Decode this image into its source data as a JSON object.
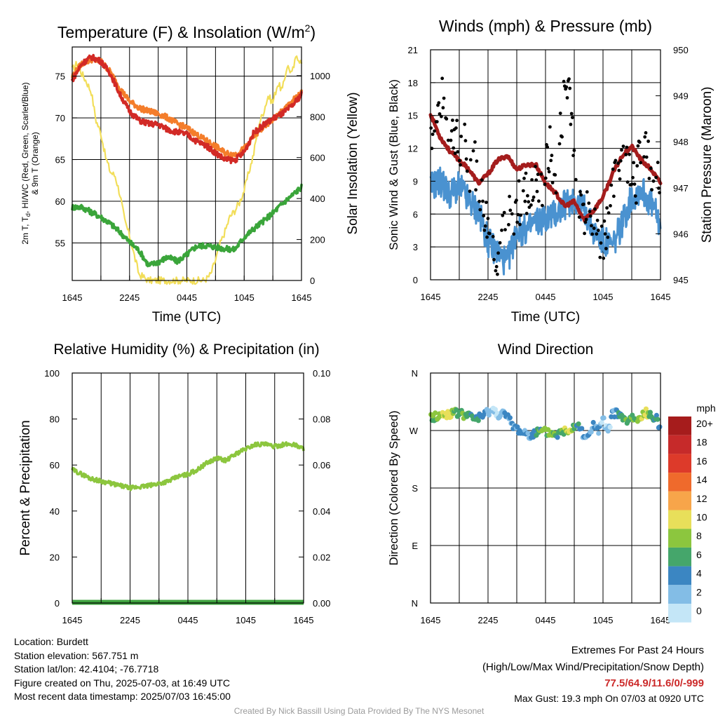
{
  "figure": {
    "credit": "Created By Nick Bassill Using Data Provided By The NYS Mesonet"
  },
  "info": {
    "location": "Location: Burdett",
    "elevation": "Station elevation: 567.751 m",
    "latlon": "Station lat/lon: 42.4104; -76.7718",
    "created": "Figure created on Thu, 2025-07-03, at 16:49 UTC",
    "recent": "Most recent data timestamp: 2025/07/03 16:45:00"
  },
  "extremes": {
    "title": "Extremes For Past 24 Hours",
    "subtitle": "(High/Low/Max Wind/Precipitation/Snow Depth)",
    "values": "77.5/64.9/11.6/0/-999",
    "max_gust": "Max Gust: 19.3 mph On 07/03 at 0920 UTC"
  },
  "colors": {
    "temp": "#d22a26",
    "dewpoint": "#3aa53a",
    "windchill": "#f47d2a",
    "solar": "#f2de5a",
    "wind": "#4a92d0",
    "gust": "#000000",
    "pressure": "#a41d1d",
    "rh": "#8cc63e",
    "precip": "#3fa33f"
  },
  "chart_data": [
    {
      "type": "line",
      "title": "Temperature (F) & Insolation (W/m",
      "title_sup": "2",
      "title_close": ")",
      "xlabel": "Time (UTC)",
      "ylabel_left_1": "2m T, T",
      "ylabel_left_sub": "d",
      "ylabel_left_2": ", HI/WC (Red, Green, Scarlet/Blue)",
      "ylabel_left_line2": "& 9m T (Orange)",
      "ylabel_right": "Solar Insolation (Yellow)",
      "x_ticks": [
        "1645",
        "2245",
        "0445",
        "1045",
        "1645"
      ],
      "x_range_hours": [
        0,
        24
      ],
      "ylim_left": [
        50.5,
        78.5
      ],
      "yticks_left": [
        55,
        60,
        65,
        70,
        75
      ],
      "ylim_right": [
        0,
        1140
      ],
      "yticks_right": [
        0,
        200,
        400,
        600,
        800,
        1000
      ],
      "series": [
        {
          "key": "t9m",
          "color": "orange",
          "x": [
            0,
            1,
            2,
            3,
            4,
            5,
            6,
            7,
            8,
            9,
            10,
            11,
            12,
            13,
            14,
            15,
            16,
            17,
            18,
            19,
            20,
            21,
            22,
            23,
            24
          ],
          "values": [
            75,
            76.5,
            77,
            76.8,
            75.5,
            73.5,
            72,
            71.2,
            70.8,
            70.5,
            70,
            69.3,
            68.8,
            68,
            67.3,
            66.6,
            65.8,
            65.6,
            66.3,
            67.8,
            68.8,
            69.8,
            70.8,
            72,
            73
          ]
        },
        {
          "key": "t2m",
          "color": "red",
          "x": [
            0,
            1,
            2,
            3,
            4,
            5,
            6,
            7,
            8,
            9,
            10,
            11,
            12,
            13,
            14,
            15,
            16,
            17,
            18,
            19,
            20,
            21,
            22,
            23,
            24
          ],
          "values": [
            74.5,
            76.5,
            77.3,
            76.8,
            75.3,
            72.8,
            70.8,
            69.7,
            69.3,
            69.2,
            68.6,
            68.3,
            68,
            67.2,
            66.7,
            65.8,
            65,
            64.9,
            65.9,
            68.2,
            69.1,
            69.9,
            70.5,
            71.4,
            72.8
          ]
        },
        {
          "key": "td",
          "color": "green",
          "x": [
            0,
            1,
            2,
            3,
            4,
            5,
            6,
            7,
            8,
            9,
            10,
            11,
            12,
            13,
            14,
            15,
            16,
            17,
            18,
            19,
            20,
            21,
            22,
            23,
            24
          ],
          "values": [
            59.3,
            59.3,
            58.7,
            58.1,
            57.3,
            56.3,
            55.1,
            54.1,
            52.3,
            52.7,
            53.3,
            52.8,
            53.6,
            54.6,
            54.7,
            54.5,
            54.3,
            54.2,
            55.7,
            56.7,
            57.6,
            58.6,
            59.7,
            60.7,
            61.7
          ]
        },
        {
          "key": "solar",
          "color": "yellow",
          "x": [
            0,
            0.5,
            1,
            1.5,
            2,
            2.5,
            3,
            3.5,
            4,
            4.5,
            5,
            5.5,
            6,
            6.5,
            7,
            8,
            10,
            12,
            13,
            13.7,
            14.1,
            14.5,
            15,
            15.5,
            16,
            16.5,
            17,
            17.5,
            18,
            18.5,
            19,
            19.5,
            20,
            20.5,
            21,
            21.5,
            22,
            22.5,
            23,
            23.5,
            24
          ],
          "values": [
            1030,
            1060,
            1010,
            970,
            920,
            780,
            720,
            600,
            530,
            510,
            420,
            290,
            220,
            120,
            30,
            0,
            0,
            0,
            0,
            0,
            10,
            30,
            100,
            180,
            240,
            310,
            340,
            380,
            440,
            530,
            620,
            760,
            820,
            900,
            870,
            960,
            930,
            1050,
            1010,
            1100,
            1060
          ]
        }
      ]
    },
    {
      "type": "line",
      "title": "Winds (mph) & Pressure (mb)",
      "xlabel": "Time (UTC)",
      "ylabel_left": "Sonic Wind & Gust (Blue, Black)",
      "ylabel_right": "Station Pressure (Maroon)",
      "x_ticks": [
        "1645",
        "2245",
        "0445",
        "1045",
        "1645"
      ],
      "ylim_left": [
        0,
        21
      ],
      "yticks_left": [
        0,
        3,
        6,
        9,
        12,
        15,
        18,
        21
      ],
      "ylim_right": [
        945,
        950
      ],
      "yticks_right": [
        945,
        946,
        947,
        948,
        949,
        950
      ],
      "series": [
        {
          "key": "wind",
          "color": "blue",
          "x": [
            0,
            1,
            2,
            3,
            4,
            5,
            6,
            7,
            8,
            9,
            10,
            11,
            12,
            13,
            14,
            15,
            16,
            17,
            18,
            19,
            20,
            21,
            22,
            23,
            24
          ],
          "values": [
            8.5,
            9,
            7.8,
            8.5,
            7.2,
            6.2,
            3.5,
            2.5,
            1.5,
            4.5,
            4.5,
            5.3,
            5.6,
            6,
            6.8,
            7.5,
            6.5,
            4.5,
            3.5,
            3,
            5.2,
            7.5,
            8.3,
            7,
            5
          ]
        },
        {
          "key": "gust",
          "color": "black",
          "x": [
            0,
            0.5,
            1,
            1.5,
            2,
            2.5,
            3,
            3.5,
            4,
            4.5,
            5,
            5.5,
            6,
            6.5,
            7,
            7.5,
            8,
            8.5,
            9,
            9.5,
            10,
            10.5,
            11,
            11.5,
            12,
            12.5,
            13,
            13.5,
            14,
            14.5,
            15,
            15.5,
            16,
            16.5,
            17,
            17.5,
            18,
            18.5,
            19,
            19.5,
            20,
            20.5,
            21,
            21.5,
            22,
            22.5,
            23,
            23.5
          ],
          "values": [
            14,
            13,
            17,
            15.5,
            12.5,
            14,
            11,
            13.5,
            10,
            11.5,
            9,
            7,
            5,
            3,
            2.5,
            4,
            5,
            6,
            6.5,
            7.5,
            8,
            7,
            9,
            8,
            10,
            12,
            9,
            13,
            17.5,
            18,
            12,
            8,
            6,
            9,
            5,
            4,
            3.5,
            6,
            8,
            10,
            12,
            10.5,
            11,
            9,
            13,
            12,
            9,
            8.5
          ]
        },
        {
          "key": "pressure",
          "color": "maroon",
          "axis": "right",
          "x": [
            0,
            1,
            2,
            3,
            4,
            5,
            6,
            7,
            8,
            9,
            10,
            11,
            12,
            13,
            14,
            15,
            16,
            17,
            18,
            19,
            20,
            21,
            22,
            23,
            24
          ],
          "values": [
            948.6,
            948.1,
            947.8,
            947.6,
            947.4,
            947.1,
            947.3,
            947.6,
            947.7,
            947.4,
            947.5,
            947.5,
            947.1,
            946.9,
            946.6,
            946.7,
            946.3,
            946.5,
            946.8,
            947.3,
            947.7,
            947.9,
            947.6,
            947.4,
            947.1
          ]
        }
      ]
    },
    {
      "type": "line",
      "title": "Relative Humidity (%) & Precipitation (in)",
      "ylabel_left": "Percent & Precipitation",
      "x_ticks": [
        "1645",
        "2245",
        "0445",
        "1045",
        "1645"
      ],
      "ylim_left": [
        0,
        100
      ],
      "yticks_left": [
        0,
        20,
        40,
        60,
        80,
        100
      ],
      "ylim_right": [
        0,
        0.1
      ],
      "yticks_right": [
        "0.00",
        "0.02",
        "0.04",
        "0.06",
        "0.08",
        "0.10"
      ],
      "series": [
        {
          "key": "rh",
          "color": "light-green",
          "x": [
            0,
            1,
            2,
            3,
            4,
            5,
            6,
            7,
            8,
            9,
            10,
            11,
            12,
            13,
            14,
            15,
            16,
            17,
            18,
            19,
            20,
            21,
            22,
            23,
            24
          ],
          "values": [
            58,
            56,
            54,
            53,
            52,
            51,
            50,
            50.5,
            51,
            52,
            53,
            55,
            56,
            58,
            61,
            63,
            62,
            65,
            67,
            69,
            69,
            68,
            69,
            69,
            67
          ]
        },
        {
          "key": "precip",
          "color": "green",
          "axis": "right",
          "x": [
            0,
            24
          ],
          "values": [
            0,
            0
          ]
        }
      ]
    },
    {
      "type": "scatter",
      "title": "Wind Direction",
      "ylabel_left": "Direction (Colored By Speed)",
      "x_ticks": [
        "1645",
        "2245",
        "0445",
        "1045",
        "1645"
      ],
      "y_ticks": [
        "N",
        "E",
        "S",
        "W",
        "N"
      ],
      "ylim_degrees": [
        0,
        360
      ],
      "legend_title": "mph",
      "legend_labels": [
        "20+",
        "18",
        "16",
        "14",
        "12",
        "10",
        "8",
        "6",
        "4",
        "2",
        "0"
      ],
      "legend_colors": [
        "#a61c1c",
        "#c62a2a",
        "#dd3a2a",
        "#ef6a2c",
        "#f7a54a",
        "#e8df5a",
        "#8cc63e",
        "#45a66b",
        "#3b86c2",
        "#83bde6",
        "#c4e6f7"
      ],
      "x": [
        0,
        0.5,
        1,
        1.5,
        2,
        2.5,
        3,
        3.5,
        4,
        4.5,
        5,
        5.5,
        6,
        6.5,
        7,
        7.5,
        8,
        8.5,
        9,
        9.5,
        10,
        10.5,
        11,
        11.5,
        12,
        12.5,
        13,
        13.5,
        14,
        14.5,
        15,
        15.5,
        16,
        16.5,
        17,
        17.5,
        18,
        18.5,
        19,
        19.5,
        20,
        20.5,
        21,
        21.5,
        22,
        22.5,
        23,
        23.5,
        24
      ],
      "values": [
        290,
        292,
        293,
        295,
        297,
        296,
        298,
        294,
        292,
        290,
        290,
        291,
        301,
        302,
        296,
        298,
        290,
        280,
        272,
        268,
        265,
        264,
        266,
        268,
        267,
        266,
        264,
        265,
        270,
        272,
        278,
        280,
        262,
        258,
        282,
        266,
        288,
        262,
        300,
        295,
        292,
        280,
        292,
        283,
        293,
        297,
        292,
        294,
        272
      ],
      "speeds": [
        6,
        7,
        8,
        9,
        10,
        7,
        6,
        8,
        6,
        5,
        6,
        4,
        2,
        1,
        2,
        3,
        3,
        4,
        3,
        4,
        3,
        3,
        5,
        6,
        7,
        8,
        6,
        5,
        8,
        10,
        7,
        5,
        3,
        2,
        4,
        3,
        2,
        1,
        3,
        4,
        5,
        6,
        7,
        6,
        8,
        9,
        6,
        5,
        4
      ]
    }
  ]
}
